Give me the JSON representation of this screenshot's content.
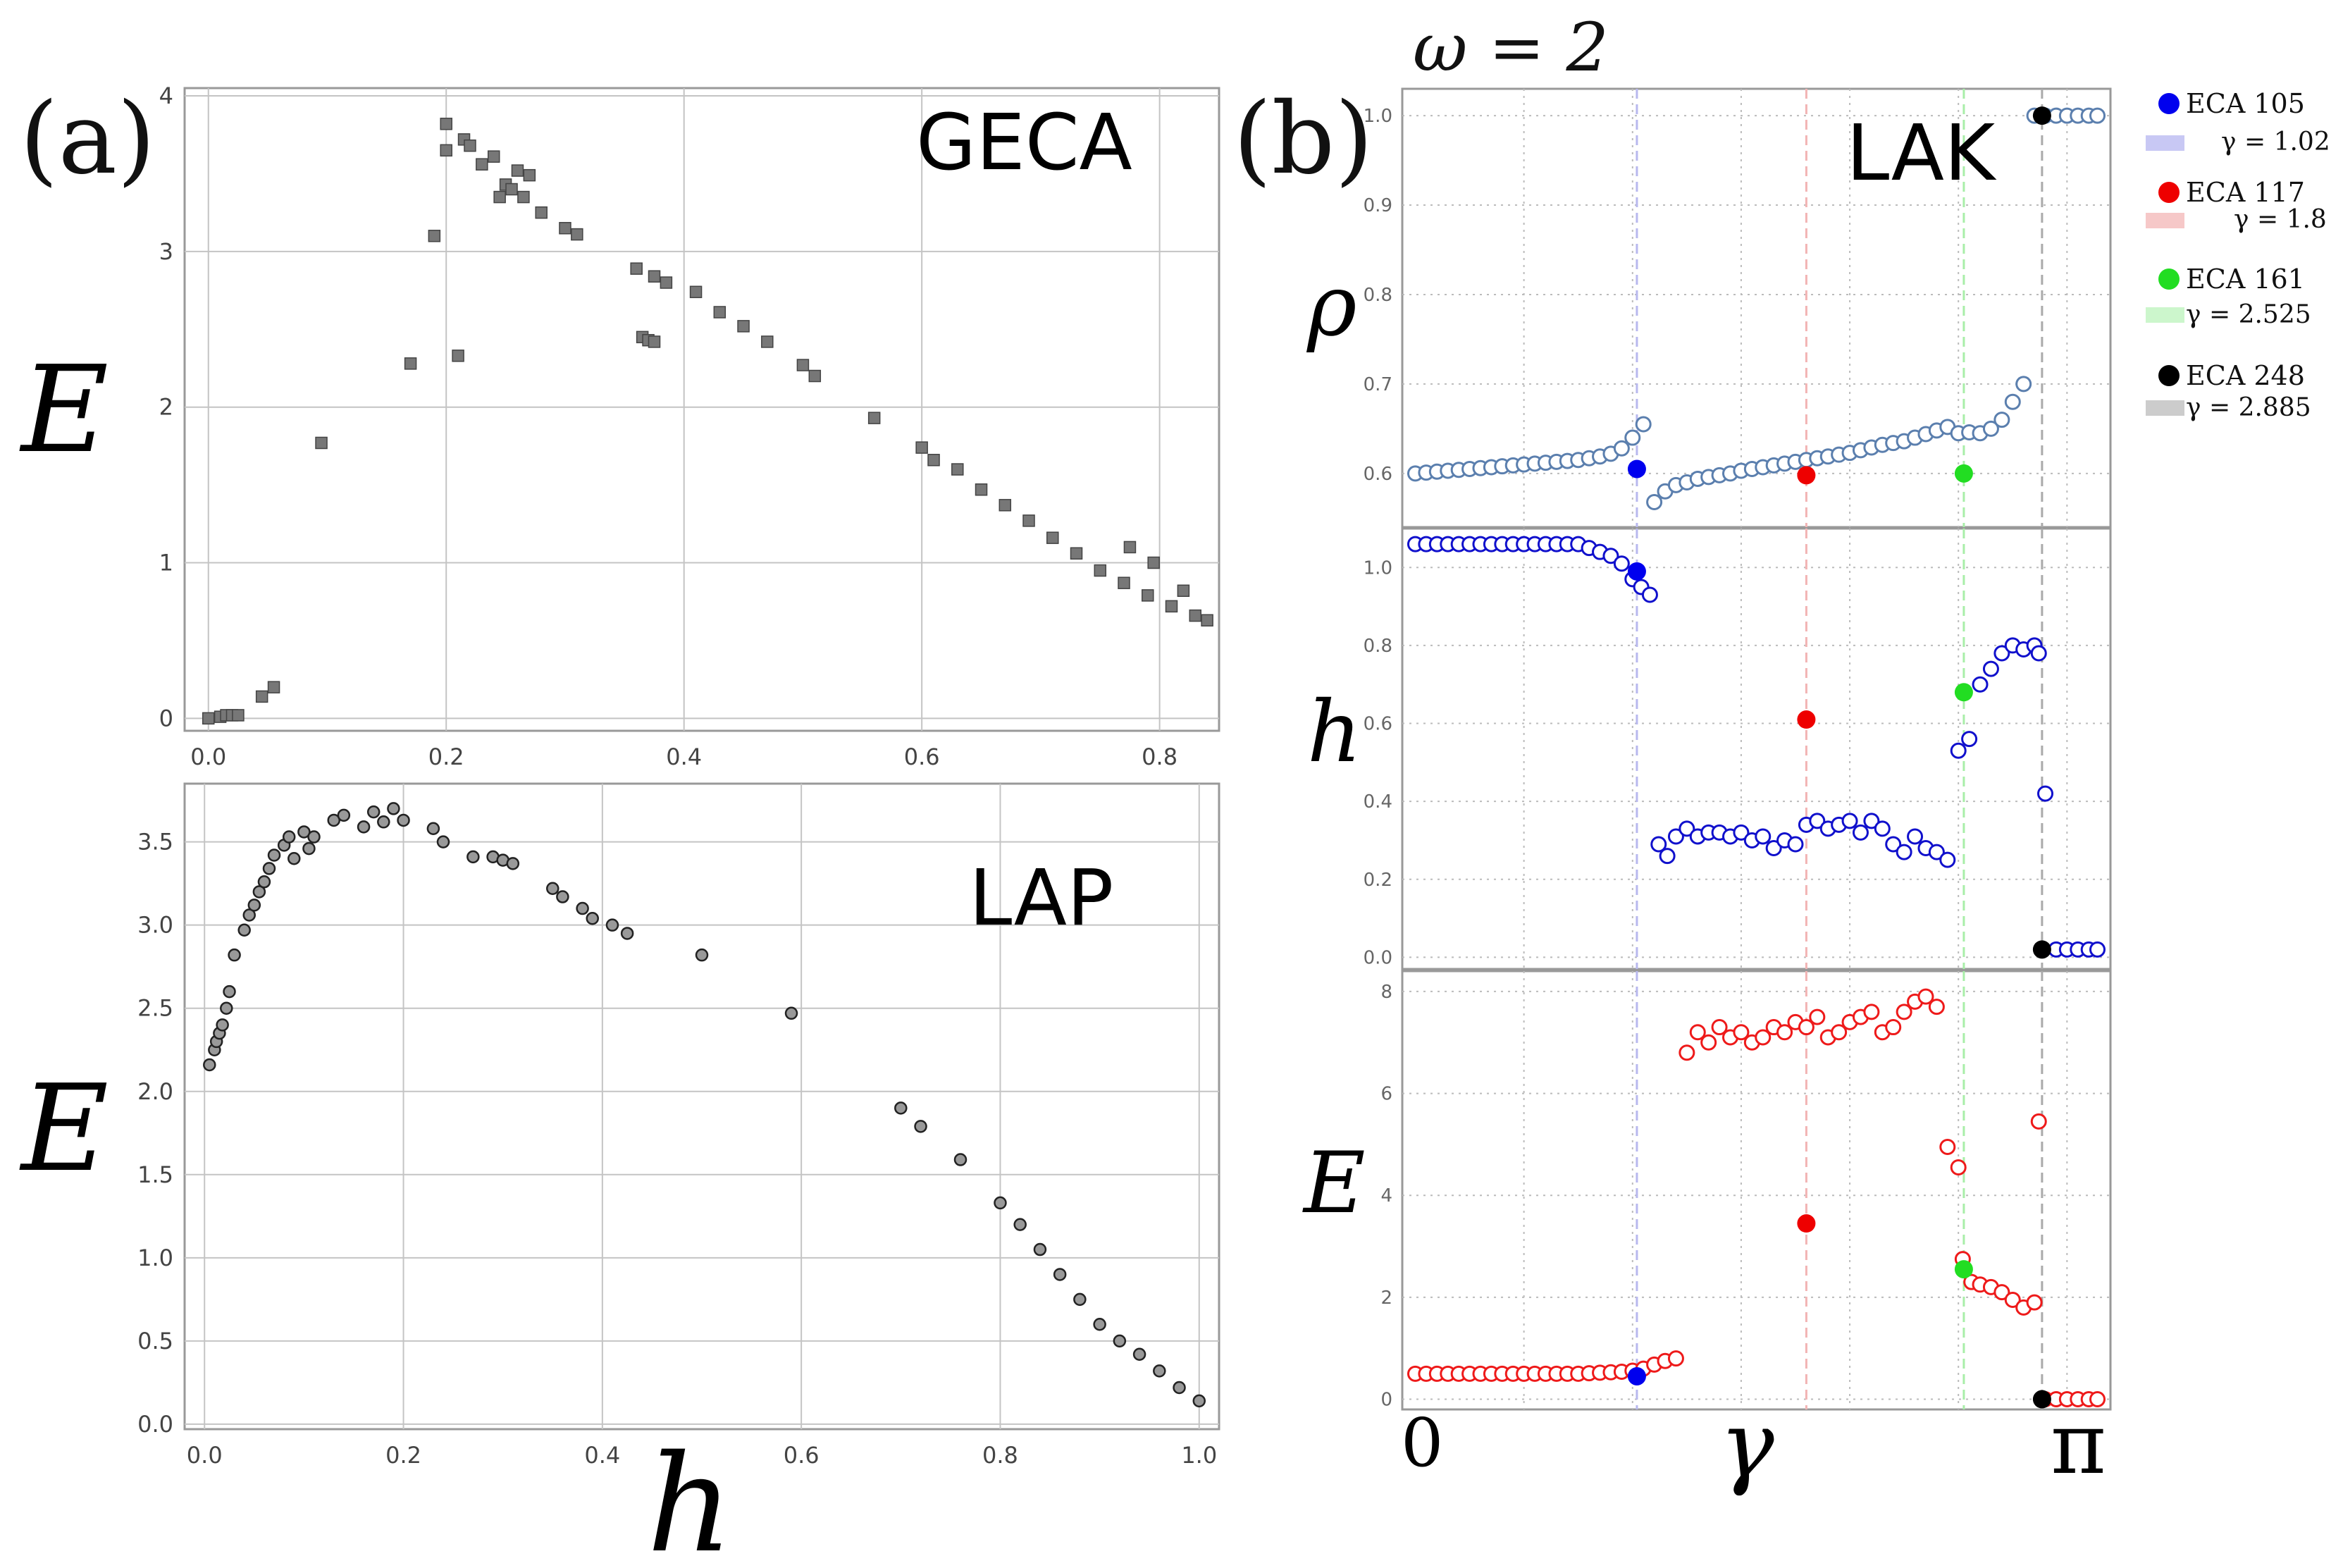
{
  "panels": {
    "a_label": "(a)",
    "b_label": "(b)",
    "omega_label": "ω = 2"
  },
  "colors": {
    "geca_marker": "#777777",
    "lap_marker": "#999999",
    "rho_marker": "#5b7fae",
    "h_marker": "#1010cc",
    "E_marker": "#ee1a1a",
    "eca105": "#0000ee",
    "eca117": "#ee0000",
    "eca161": "#22dd22",
    "eca248": "#000000"
  },
  "legend": [
    {
      "name": "ECA 105",
      "gamma_text": "γ = 1.02",
      "color": "#0000ee",
      "band": "#c8c8f4"
    },
    {
      "name": "ECA 117",
      "gamma_text": "γ = 1.8",
      "color": "#ee0000",
      "band": "#f6c8c8"
    },
    {
      "name": "ECA 161",
      "gamma_text": "γ = 2.525",
      "color": "#22dd22",
      "band": "#ccf6cc"
    },
    {
      "name": "ECA 248",
      "gamma_text": "γ = 2.885",
      "color": "#000000",
      "band": "#cccccc"
    }
  ],
  "chart_data": [
    {
      "id": "geca",
      "type": "scatter",
      "title": "GECA",
      "xlabel": "",
      "ylabel": "E",
      "xlim": [
        -0.02,
        0.85
      ],
      "ylim": [
        -0.08,
        4.05
      ],
      "xticks": [
        "0.0",
        "0.2",
        "0.4",
        "0.6",
        "0.8"
      ],
      "yticks": [
        "0",
        "1",
        "2",
        "3",
        "4"
      ],
      "x": [
        0.0,
        0.01,
        0.015,
        0.02,
        0.025,
        0.045,
        0.055,
        0.095,
        0.17,
        0.19,
        0.2,
        0.2,
        0.21,
        0.215,
        0.22,
        0.23,
        0.24,
        0.245,
        0.25,
        0.255,
        0.26,
        0.265,
        0.27,
        0.28,
        0.3,
        0.31,
        0.36,
        0.365,
        0.37,
        0.375,
        0.375,
        0.385,
        0.41,
        0.43,
        0.45,
        0.47,
        0.5,
        0.51,
        0.56,
        0.6,
        0.61,
        0.63,
        0.65,
        0.67,
        0.69,
        0.71,
        0.73,
        0.75,
        0.77,
        0.79,
        0.81,
        0.83,
        0.84,
        0.775,
        0.795,
        0.82
      ],
      "y": [
        0.0,
        0.01,
        0.02,
        0.02,
        0.02,
        0.14,
        0.2,
        1.77,
        2.28,
        3.1,
        3.82,
        3.65,
        2.33,
        3.72,
        3.68,
        3.56,
        3.61,
        3.35,
        3.43,
        3.4,
        3.52,
        3.35,
        3.49,
        3.25,
        3.15,
        3.11,
        2.89,
        2.45,
        2.43,
        2.84,
        2.42,
        2.8,
        2.74,
        2.61,
        2.52,
        2.42,
        2.27,
        2.2,
        1.93,
        1.74,
        1.66,
        1.6,
        1.47,
        1.37,
        1.27,
        1.16,
        1.06,
        0.95,
        0.87,
        0.79,
        0.72,
        0.66,
        0.63,
        1.1,
        1.0,
        0.82
      ]
    },
    {
      "id": "lap",
      "type": "scatter",
      "title": "LAP",
      "xlabel": "h",
      "ylabel": "E",
      "xlim": [
        -0.02,
        1.02
      ],
      "ylim": [
        -0.03,
        3.85
      ],
      "xticks": [
        "0.0",
        "0.2",
        "0.4",
        "0.6",
        "0.8",
        "1.0"
      ],
      "yticks": [
        "0.0",
        "0.5",
        "1.0",
        "1.5",
        "2.0",
        "2.5",
        "3.0",
        "3.5"
      ],
      "x": [
        0.005,
        0.01,
        0.012,
        0.015,
        0.018,
        0.022,
        0.025,
        0.03,
        0.04,
        0.045,
        0.05,
        0.055,
        0.06,
        0.065,
        0.07,
        0.08,
        0.085,
        0.09,
        0.1,
        0.105,
        0.11,
        0.13,
        0.14,
        0.16,
        0.17,
        0.18,
        0.19,
        0.2,
        0.23,
        0.24,
        0.27,
        0.29,
        0.3,
        0.31,
        0.35,
        0.36,
        0.38,
        0.39,
        0.41,
        0.425,
        0.5,
        0.59,
        0.7,
        0.72,
        0.76,
        0.8,
        0.82,
        0.84,
        0.86,
        0.88,
        0.9,
        0.92,
        0.94,
        0.96,
        0.98,
        1.0
      ],
      "y": [
        2.16,
        2.25,
        2.3,
        2.35,
        2.4,
        2.5,
        2.6,
        2.82,
        2.97,
        3.06,
        3.12,
        3.2,
        3.26,
        3.34,
        3.42,
        3.48,
        3.53,
        3.4,
        3.56,
        3.46,
        3.53,
        3.63,
        3.66,
        3.59,
        3.68,
        3.62,
        3.7,
        3.63,
        3.58,
        3.5,
        3.41,
        3.41,
        3.39,
        3.37,
        3.22,
        3.17,
        3.1,
        3.04,
        3.0,
        2.95,
        2.82,
        2.47,
        1.9,
        1.79,
        1.59,
        1.33,
        1.2,
        1.05,
        0.9,
        0.75,
        0.6,
        0.5,
        0.42,
        0.32,
        0.22,
        0.14
      ]
    },
    {
      "id": "rho",
      "type": "scatter",
      "title": "LAK",
      "ylabel": "ρ",
      "xlim": [
        -0.06,
        3.2
      ],
      "ylim": [
        0.54,
        1.03
      ],
      "yticks": [
        "0.6",
        "0.7",
        "0.8",
        "0.9",
        "1.0"
      ],
      "x": [
        0.0,
        0.05,
        0.1,
        0.15,
        0.2,
        0.25,
        0.3,
        0.35,
        0.4,
        0.45,
        0.5,
        0.55,
        0.6,
        0.65,
        0.7,
        0.75,
        0.8,
        0.85,
        0.9,
        0.95,
        1.0,
        1.05,
        1.1,
        1.15,
        1.2,
        1.25,
        1.3,
        1.35,
        1.4,
        1.45,
        1.5,
        1.55,
        1.6,
        1.65,
        1.7,
        1.75,
        1.8,
        1.85,
        1.9,
        1.95,
        2.0,
        2.05,
        2.1,
        2.15,
        2.2,
        2.25,
        2.3,
        2.35,
        2.4,
        2.45,
        2.5,
        2.55,
        2.6,
        2.65,
        2.7,
        2.75,
        2.8,
        2.85,
        2.9,
        2.95,
        3.0,
        3.05,
        3.1,
        3.14
      ],
      "y": [
        0.6,
        0.601,
        0.602,
        0.603,
        0.604,
        0.605,
        0.606,
        0.607,
        0.608,
        0.609,
        0.61,
        0.611,
        0.612,
        0.613,
        0.614,
        0.615,
        0.617,
        0.619,
        0.622,
        0.628,
        0.64,
        0.655,
        0.568,
        0.58,
        0.587,
        0.59,
        0.594,
        0.596,
        0.598,
        0.6,
        0.603,
        0.605,
        0.607,
        0.609,
        0.611,
        0.613,
        0.615,
        0.617,
        0.619,
        0.621,
        0.623,
        0.626,
        0.629,
        0.632,
        0.634,
        0.636,
        0.64,
        0.644,
        0.648,
        0.652,
        0.645,
        0.646,
        0.645,
        0.65,
        0.66,
        0.68,
        0.7,
        1.0,
        1.0,
        1.0,
        1.0,
        1.0,
        1.0,
        1.0
      ],
      "highlight_x": [
        1.02,
        1.8,
        2.525,
        2.885
      ],
      "highlight_y": [
        0.605,
        0.598,
        0.6,
        1.0
      ]
    },
    {
      "id": "h",
      "type": "scatter",
      "ylabel": "h",
      "xlim": [
        -0.06,
        3.2
      ],
      "ylim": [
        -0.03,
        1.1
      ],
      "yticks": [
        "0.0",
        "0.2",
        "0.4",
        "0.6",
        "0.8",
        "1.0"
      ],
      "x": [
        0.0,
        0.05,
        0.1,
        0.15,
        0.2,
        0.25,
        0.3,
        0.35,
        0.4,
        0.45,
        0.5,
        0.55,
        0.6,
        0.65,
        0.7,
        0.75,
        0.8,
        0.85,
        0.9,
        0.95,
        1.0,
        1.04,
        1.08,
        1.12,
        1.16,
        1.2,
        1.25,
        1.3,
        1.35,
        1.4,
        1.45,
        1.5,
        1.55,
        1.6,
        1.65,
        1.7,
        1.75,
        1.8,
        1.85,
        1.9,
        1.95,
        2.0,
        2.05,
        2.1,
        2.15,
        2.2,
        2.25,
        2.3,
        2.35,
        2.4,
        2.45,
        2.5,
        2.55,
        2.6,
        2.65,
        2.7,
        2.75,
        2.8,
        2.85,
        2.87,
        2.9,
        2.95,
        3.0,
        3.05,
        3.1,
        3.14
      ],
      "y": [
        1.06,
        1.06,
        1.06,
        1.06,
        1.06,
        1.06,
        1.06,
        1.06,
        1.06,
        1.06,
        1.06,
        1.06,
        1.06,
        1.06,
        1.06,
        1.06,
        1.05,
        1.04,
        1.03,
        1.01,
        0.97,
        0.95,
        0.93,
        0.29,
        0.26,
        0.31,
        0.33,
        0.31,
        0.32,
        0.32,
        0.31,
        0.32,
        0.3,
        0.31,
        0.28,
        0.3,
        0.29,
        0.34,
        0.35,
        0.33,
        0.34,
        0.35,
        0.32,
        0.35,
        0.33,
        0.29,
        0.27,
        0.31,
        0.28,
        0.27,
        0.25,
        0.53,
        0.56,
        0.7,
        0.74,
        0.78,
        0.8,
        0.79,
        0.8,
        0.78,
        0.42,
        0.02,
        0.02,
        0.02,
        0.02,
        0.02
      ],
      "highlight_x": [
        1.02,
        1.8,
        2.525,
        2.885
      ],
      "highlight_y": [
        0.99,
        0.61,
        0.68,
        0.02
      ]
    },
    {
      "id": "E",
      "type": "scatter",
      "ylabel": "E",
      "xlabel": "γ",
      "xlim": [
        -0.06,
        3.2
      ],
      "ylim": [
        -0.2,
        8.4
      ],
      "yticks": [
        "0",
        "2",
        "4",
        "6",
        "8"
      ],
      "xtick_left": "0",
      "xtick_right": "π",
      "x": [
        0.0,
        0.05,
        0.1,
        0.15,
        0.2,
        0.25,
        0.3,
        0.35,
        0.4,
        0.45,
        0.5,
        0.55,
        0.6,
        0.65,
        0.7,
        0.75,
        0.8,
        0.85,
        0.9,
        0.95,
        1.0,
        1.05,
        1.1,
        1.15,
        1.2,
        1.25,
        1.3,
        1.35,
        1.4,
        1.45,
        1.5,
        1.55,
        1.6,
        1.65,
        1.7,
        1.75,
        1.8,
        1.85,
        1.9,
        1.95,
        2.0,
        2.05,
        2.1,
        2.15,
        2.2,
        2.25,
        2.3,
        2.35,
        2.4,
        2.45,
        2.5,
        2.52,
        2.56,
        2.6,
        2.65,
        2.7,
        2.75,
        2.8,
        2.85,
        2.87,
        2.9,
        2.95,
        3.0,
        3.05,
        3.1,
        3.14
      ],
      "y": [
        0.5,
        0.5,
        0.5,
        0.5,
        0.5,
        0.5,
        0.5,
        0.5,
        0.5,
        0.5,
        0.5,
        0.5,
        0.5,
        0.5,
        0.5,
        0.5,
        0.51,
        0.52,
        0.53,
        0.54,
        0.56,
        0.6,
        0.68,
        0.75,
        0.8,
        6.8,
        7.2,
        7.0,
        7.3,
        7.1,
        7.2,
        7.0,
        7.1,
        7.3,
        7.2,
        7.4,
        7.3,
        7.5,
        7.1,
        7.2,
        7.4,
        7.5,
        7.6,
        7.2,
        7.3,
        7.6,
        7.8,
        7.9,
        7.7,
        4.95,
        4.55,
        2.75,
        2.3,
        2.25,
        2.2,
        2.1,
        1.95,
        1.8,
        1.9,
        5.45,
        0.0,
        0.0,
        0.0,
        0.0,
        0.0,
        0.0
      ],
      "highlight_x": [
        1.02,
        1.8,
        2.525,
        2.885
      ],
      "highlight_y": [
        0.45,
        3.45,
        2.55,
        0.0
      ]
    }
  ]
}
